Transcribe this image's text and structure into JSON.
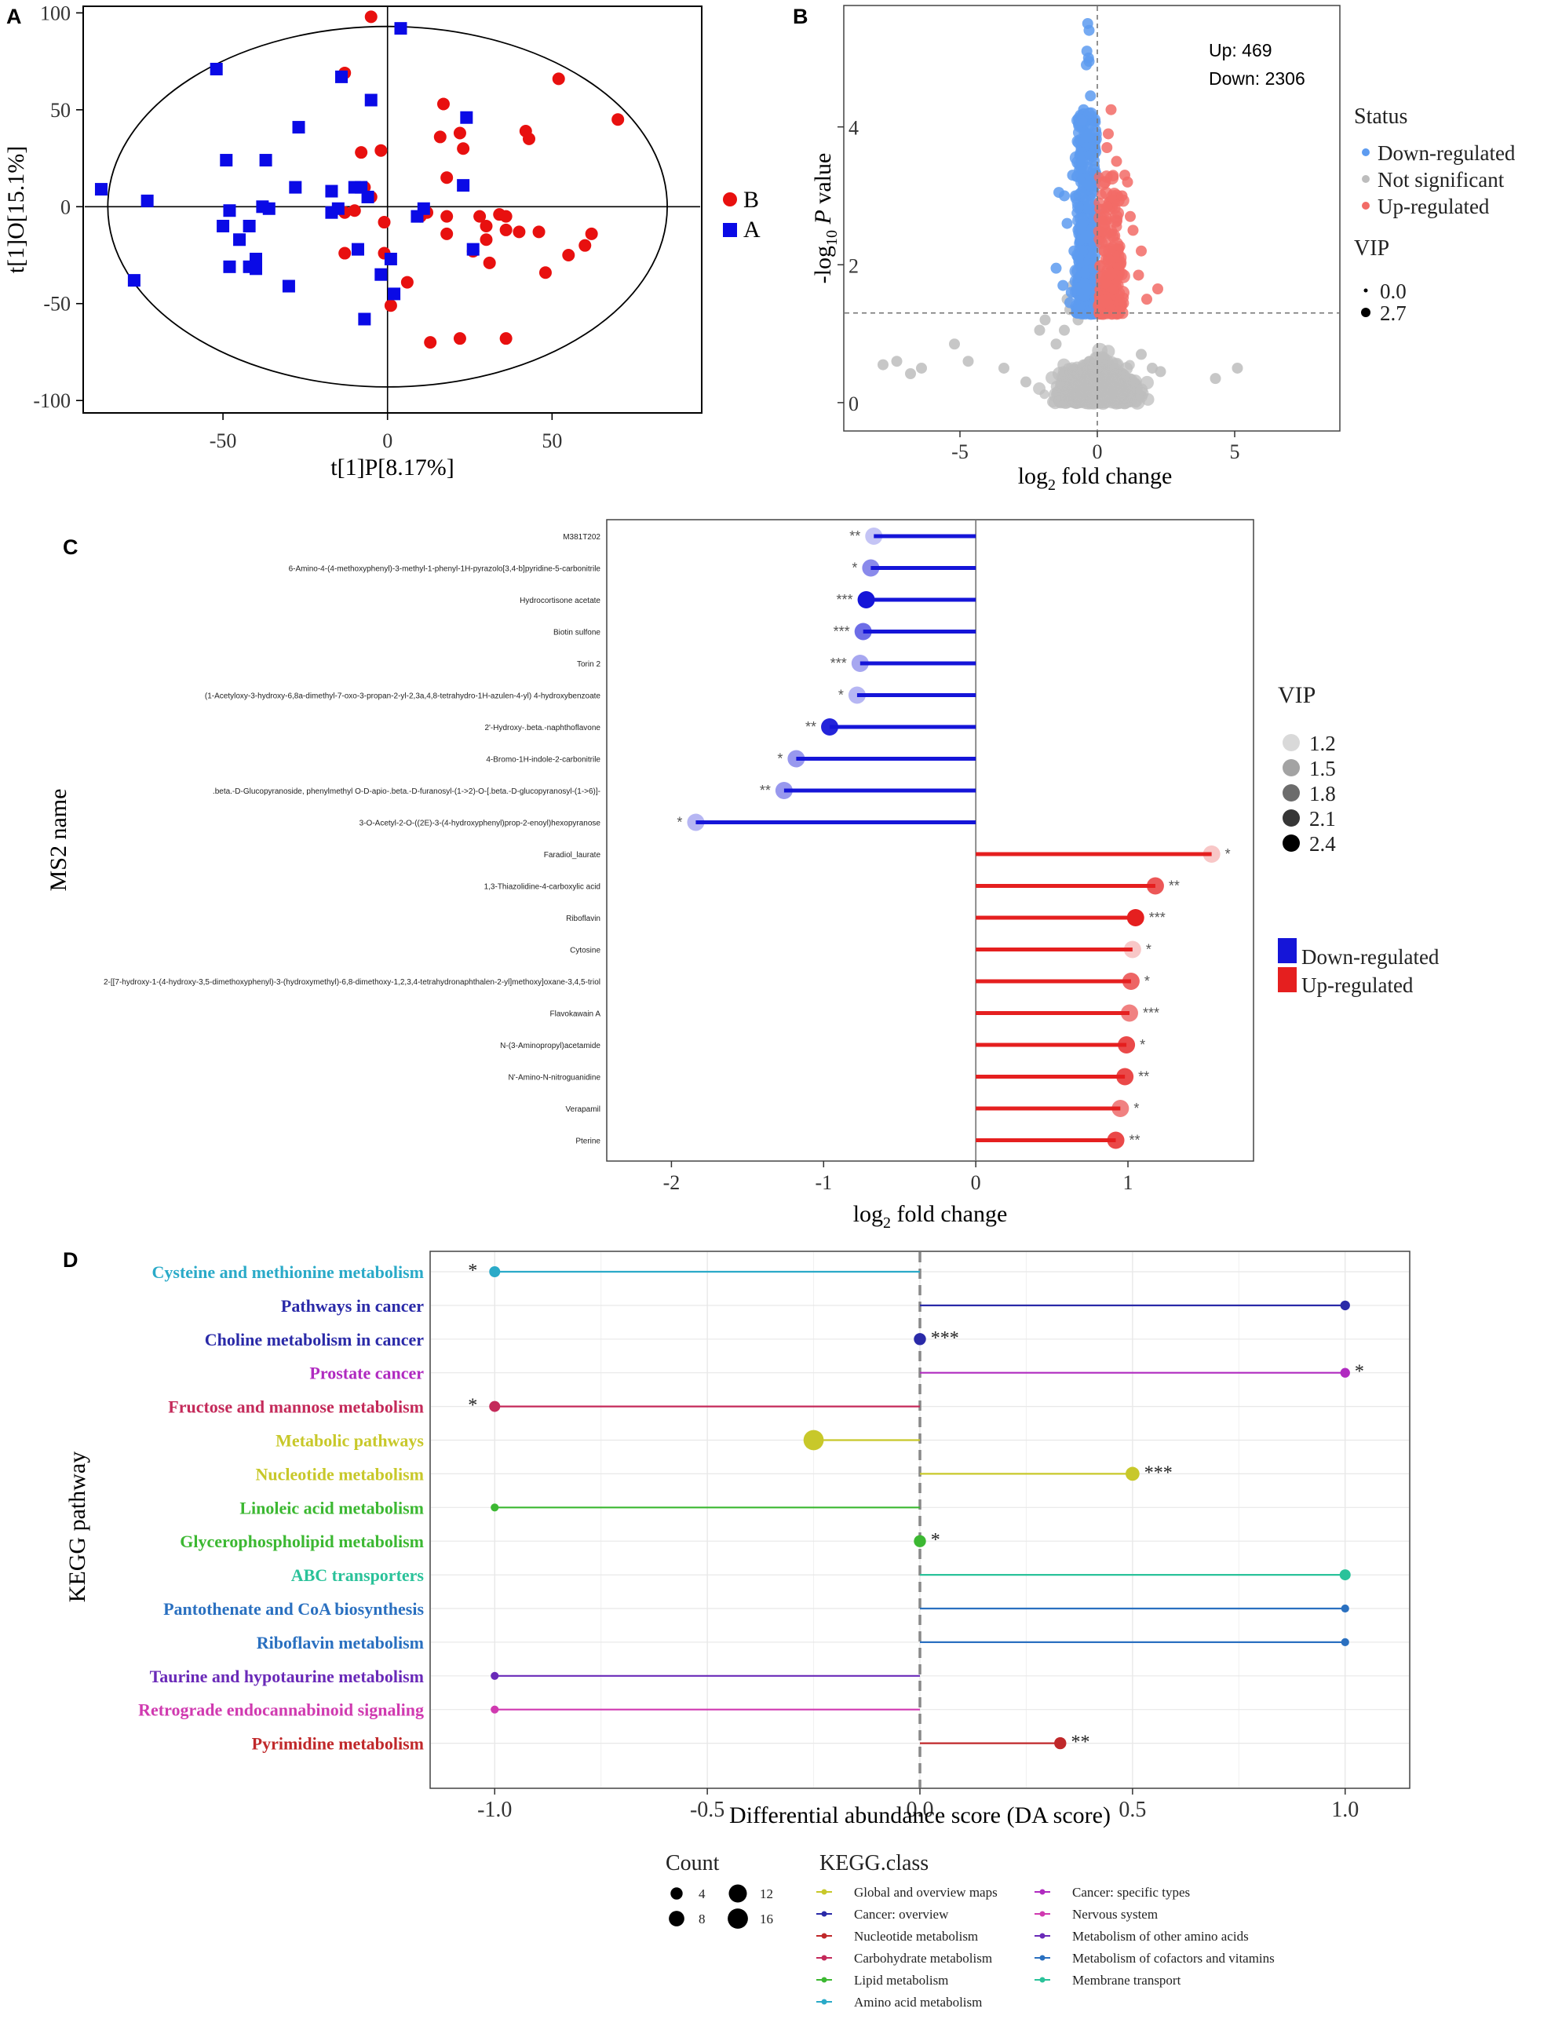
{
  "panel_labels": [
    "A",
    "B",
    "C",
    "D"
  ],
  "colors": {
    "red": "#e8100f",
    "blue": "#0a0ae6",
    "volcano_down": "#5d9bf0",
    "volcano_ns": "#bdbdbd",
    "volcano_up": "#f26b66",
    "lolli_down": "#1515d8",
    "lolli_up": "#e51f1f"
  },
  "chart_data": [
    {
      "panel": "A",
      "type": "scatter",
      "xlabel": "t[1]P[8.17%]",
      "ylabel": "t[1]O[15.1%]",
      "xlim": [
        -92,
        95
      ],
      "ylim": [
        -106,
        103
      ],
      "xticks": [
        -50,
        0,
        50
      ],
      "yticks": [
        -100,
        -50,
        0,
        50,
        100
      ],
      "ellipse": {
        "center": [
          0,
          0
        ],
        "rx": 85,
        "ry": 93
      },
      "series": [
        {
          "name": "B",
          "shape": "circle",
          "color": "#e8100f",
          "points": [
            [
              -5,
              98
            ],
            [
              -13,
              69
            ],
            [
              17,
              53
            ],
            [
              22,
              38
            ],
            [
              42,
              39
            ],
            [
              43,
              35
            ],
            [
              52,
              66
            ],
            [
              70,
              45
            ],
            [
              16,
              36
            ],
            [
              -8,
              28
            ],
            [
              -2,
              29
            ],
            [
              23,
              30
            ],
            [
              18,
              15
            ],
            [
              -7,
              10
            ],
            [
              -5,
              5
            ],
            [
              12,
              -3
            ],
            [
              -13,
              -3
            ],
            [
              -10,
              -2
            ],
            [
              -1,
              -8
            ],
            [
              10,
              -5
            ],
            [
              18,
              -5
            ],
            [
              28,
              -5
            ],
            [
              34,
              -4
            ],
            [
              36,
              -5
            ],
            [
              36,
              -12
            ],
            [
              40,
              -13
            ],
            [
              30,
              -10
            ],
            [
              18,
              -14
            ],
            [
              30,
              -17
            ],
            [
              26,
              -23
            ],
            [
              31,
              -29
            ],
            [
              -13,
              -24
            ],
            [
              -1,
              -24
            ],
            [
              6,
              -39
            ],
            [
              1,
              -51
            ],
            [
              13,
              -70
            ],
            [
              22,
              -68
            ],
            [
              36,
              -68
            ],
            [
              55,
              -25
            ],
            [
              60,
              -20
            ],
            [
              46,
              -13
            ],
            [
              62,
              -14
            ],
            [
              48,
              -34
            ]
          ]
        },
        {
          "name": "A",
          "shape": "square",
          "color": "#0a0ae6",
          "points": [
            [
              4,
              92
            ],
            [
              -52,
              71
            ],
            [
              -14,
              67
            ],
            [
              -5,
              55
            ],
            [
              24,
              46
            ],
            [
              -27,
              41
            ],
            [
              -49,
              24
            ],
            [
              -37,
              24
            ],
            [
              -28,
              10
            ],
            [
              -17,
              8
            ],
            [
              -10,
              10
            ],
            [
              -8,
              10
            ],
            [
              -6,
              5
            ],
            [
              -48,
              -2
            ],
            [
              -38,
              0
            ],
            [
              -36,
              -1
            ],
            [
              -50,
              -10
            ],
            [
              -42,
              -10
            ],
            [
              -45,
              -17
            ],
            [
              -40,
              -27
            ],
            [
              -42,
              -31
            ],
            [
              -48,
              -31
            ],
            [
              -40,
              -32
            ],
            [
              -30,
              -41
            ],
            [
              -17,
              -3
            ],
            [
              -15,
              -1
            ],
            [
              -9,
              -22
            ],
            [
              -2,
              -35
            ],
            [
              1,
              -27
            ],
            [
              2,
              -45
            ],
            [
              -7,
              -58
            ],
            [
              26,
              -22
            ],
            [
              9,
              -5
            ],
            [
              11,
              -1
            ],
            [
              -73,
              3
            ],
            [
              -87,
              9
            ],
            [
              -77,
              -38
            ],
            [
              23,
              11
            ]
          ]
        }
      ]
    },
    {
      "panel": "B",
      "type": "scatter",
      "xlabel": "log2 fold change",
      "ylabel": "-log10 P value",
      "xlim": [
        -9.2,
        8.8
      ],
      "ylim": [
        -0.4,
        5.75
      ],
      "xticks": [
        -5,
        0,
        5
      ],
      "yticks": [
        0,
        2,
        4
      ],
      "thresholds": {
        "x": 0,
        "y": 1.3
      },
      "annotations": {
        "up": "Up: 469",
        "down": "Down: 2306"
      },
      "legend": {
        "title": "Status",
        "items": [
          "Down-regulated",
          "Not significant",
          "Up-regulated"
        ],
        "size_title": "VIP",
        "sizes": [
          "0.0",
          "2.7"
        ]
      },
      "counts": {
        "up": 469,
        "down": 2306
      }
    },
    {
      "panel": "C",
      "type": "lollipop",
      "ylabel": "MS2 name",
      "xlabel": "log2 fold change",
      "xlim": [
        -2.42,
        1.82
      ],
      "xticks": [
        -2,
        -1,
        0,
        1
      ],
      "legend": {
        "title": "VIP",
        "vip_values": [
          1.2,
          1.5,
          1.8,
          2.1,
          2.4
        ],
        "vip_labels": [
          "1.2",
          "1.5",
          "1.8",
          "2.1",
          "2.4"
        ],
        "groups": [
          "Down-regulated",
          "Up-regulated"
        ]
      },
      "rows": [
        {
          "name": "M381T202",
          "value": -0.67,
          "sig": "**",
          "vip": 1.2
        },
        {
          "name": "6-Amino-4-(4-methoxyphenyl)-3-methyl-1-phenyl-1H-pyrazolo[3,4-b]pyridine-5-carbonitrile",
          "value": -0.69,
          "sig": "*",
          "vip": 1.6
        },
        {
          "name": "Hydrocortisone acetate",
          "value": -0.72,
          "sig": "***",
          "vip": 2.4
        },
        {
          "name": "Biotin sulfone",
          "value": -0.74,
          "sig": "***",
          "vip": 1.8
        },
        {
          "name": "Torin 2",
          "value": -0.76,
          "sig": "***",
          "vip": 1.4
        },
        {
          "name": "(1-Acetyloxy-3-hydroxy-6,8a-dimethyl-7-oxo-3-propan-2-yl-2,3a,4,8-tetrahydro-1H-azulen-4-yl) 4-hydroxybenzoate",
          "value": -0.78,
          "sig": "*",
          "vip": 1.3
        },
        {
          "name": "2'-Hydroxy-.beta.-naphthoflavone",
          "value": -0.96,
          "sig": "**",
          "vip": 2.3
        },
        {
          "name": "4-Bromo-1H-indole-2-carbonitrile",
          "value": -1.18,
          "sig": "*",
          "vip": 1.5
        },
        {
          "name": ".beta.-D-Glucopyranoside, phenylmethyl O-D-apio-.beta.-D-furanosyl-(1->2)-O-[.beta.-D-glucopyranosyl-(1->6)]-",
          "value": -1.26,
          "sig": "**",
          "vip": 1.5
        },
        {
          "name": "3-O-Acetyl-2-O-((2E)-3-(4-hydroxyphenyl)prop-2-enoyl)hexopyranose",
          "value": -1.84,
          "sig": "*",
          "vip": 1.3
        },
        {
          "name": "Faradiol_laurate",
          "value": 1.55,
          "sig": "*",
          "vip": 1.2
        },
        {
          "name": "1,3-Thiazolidine-4-carboxylic acid",
          "value": 1.18,
          "sig": "**",
          "vip": 2.0
        },
        {
          "name": "Riboflavin",
          "value": 1.05,
          "sig": "***",
          "vip": 2.4
        },
        {
          "name": "Cytosine",
          "value": 1.03,
          "sig": "*",
          "vip": 1.2
        },
        {
          "name": "2-[[7-hydroxy-1-(4-hydroxy-3,5-dimethoxyphenyl)-3-(hydroxymethyl)-6,8-dimethoxy-1,2,3,4-tetrahydronaphthalen-2-yl]methoxy]oxane-3,4,5-triol",
          "value": 1.02,
          "sig": "*",
          "vip": 1.9
        },
        {
          "name": "Flavokawain A",
          "value": 1.01,
          "sig": "***",
          "vip": 1.7
        },
        {
          "name": "N-(3-Aminopropyl)acetamide",
          "value": 0.99,
          "sig": "*",
          "vip": 2.1
        },
        {
          "name": "N'-Amino-N-nitroguanidine",
          "value": 0.98,
          "sig": "**",
          "vip": 2.1
        },
        {
          "name": "Verapamil",
          "value": 0.95,
          "sig": "*",
          "vip": 1.7
        },
        {
          "name": "Pterine",
          "value": 0.92,
          "sig": "**",
          "vip": 2.1
        }
      ]
    },
    {
      "panel": "D",
      "type": "lollipop",
      "ylabel": "KEGG pathway",
      "xlabel": "Differential abundance score (DA score)",
      "xlim": [
        -1.15,
        1.15
      ],
      "xticks": [
        -1.0,
        -0.5,
        0.0,
        0.5,
        1.0
      ],
      "xtick_labels": [
        "-1.0",
        "-0.5",
        "0.0",
        "0.5",
        "1.0"
      ],
      "rows": [
        {
          "name": "Cysteine and methionine metabolism",
          "value": -1.0,
          "count": 3,
          "sig": "*",
          "class": "Amino acid metabolism"
        },
        {
          "name": "Pathways in cancer",
          "value": 1.0,
          "count": 2,
          "sig": "",
          "class": "Cancer: overview"
        },
        {
          "name": "Choline metabolism in cancer",
          "value": 0.0,
          "count": 4,
          "sig": "***",
          "class": "Cancer: overview"
        },
        {
          "name": "Prostate cancer",
          "value": 1.0,
          "count": 2,
          "sig": "*",
          "class": "Cancer: specific types"
        },
        {
          "name": "Fructose and mannose metabolism",
          "value": -1.0,
          "count": 3,
          "sig": "*",
          "class": "Carbohydrate metabolism"
        },
        {
          "name": "Metabolic pathways",
          "value": -0.25,
          "count": 16,
          "sig": "",
          "class": "Global and overview maps"
        },
        {
          "name": "Nucleotide metabolism",
          "value": 0.5,
          "count": 6,
          "sig": "***",
          "class": "Global and overview maps"
        },
        {
          "name": "Linoleic acid metabolism",
          "value": -1.0,
          "count": 1,
          "sig": "",
          "class": "Lipid metabolism"
        },
        {
          "name": "Glycerophospholipid metabolism",
          "value": 0.0,
          "count": 4,
          "sig": "*",
          "class": "Lipid metabolism"
        },
        {
          "name": "ABC transporters",
          "value": 1.0,
          "count": 3,
          "sig": "",
          "class": "Membrane transport"
        },
        {
          "name": "Pantothenate and CoA biosynthesis",
          "value": 1.0,
          "count": 1,
          "sig": "",
          "class": "Metabolism of cofactors and vitamins"
        },
        {
          "name": "Riboflavin metabolism",
          "value": 1.0,
          "count": 1,
          "sig": "",
          "class": "Metabolism of cofactors and vitamins"
        },
        {
          "name": "Taurine and hypotaurine metabolism",
          "value": -1.0,
          "count": 1,
          "sig": "",
          "class": "Metabolism of other amino acids"
        },
        {
          "name": "Retrograde endocannabinoid signaling",
          "value": -1.0,
          "count": 1,
          "sig": "",
          "class": "Nervous system"
        },
        {
          "name": "Pyrimidine metabolism",
          "value": 0.33,
          "count": 4,
          "sig": "**",
          "class": "Nucleotide metabolism"
        }
      ],
      "legend": {
        "count_title": "Count",
        "count_values": [
          4,
          8,
          12,
          16
        ],
        "count_labels": [
          "4",
          "8",
          "12",
          "16"
        ],
        "class_title": "KEGG.class",
        "classes": [
          {
            "name": "Global and overview maps",
            "color": "#c8c82a"
          },
          {
            "name": "Cancer: overview",
            "color": "#2a2aa8"
          },
          {
            "name": "Nucleotide metabolism",
            "color": "#c0282a"
          },
          {
            "name": "Carbohydrate metabolism",
            "color": "#c42a5a"
          },
          {
            "name": "Lipid metabolism",
            "color": "#3cb832"
          },
          {
            "name": "Amino acid metabolism",
            "color": "#2aaac8"
          },
          {
            "name": "Cancer: specific types",
            "color": "#b02ac0"
          },
          {
            "name": "Nervous system",
            "color": "#d03ab0"
          },
          {
            "name": "Metabolism of other amino acids",
            "color": "#6a2ab8"
          },
          {
            "name": "Metabolism of cofactors and vitamins",
            "color": "#2a70c0"
          },
          {
            "name": "Membrane transport",
            "color": "#2ac29a"
          }
        ]
      }
    }
  ]
}
